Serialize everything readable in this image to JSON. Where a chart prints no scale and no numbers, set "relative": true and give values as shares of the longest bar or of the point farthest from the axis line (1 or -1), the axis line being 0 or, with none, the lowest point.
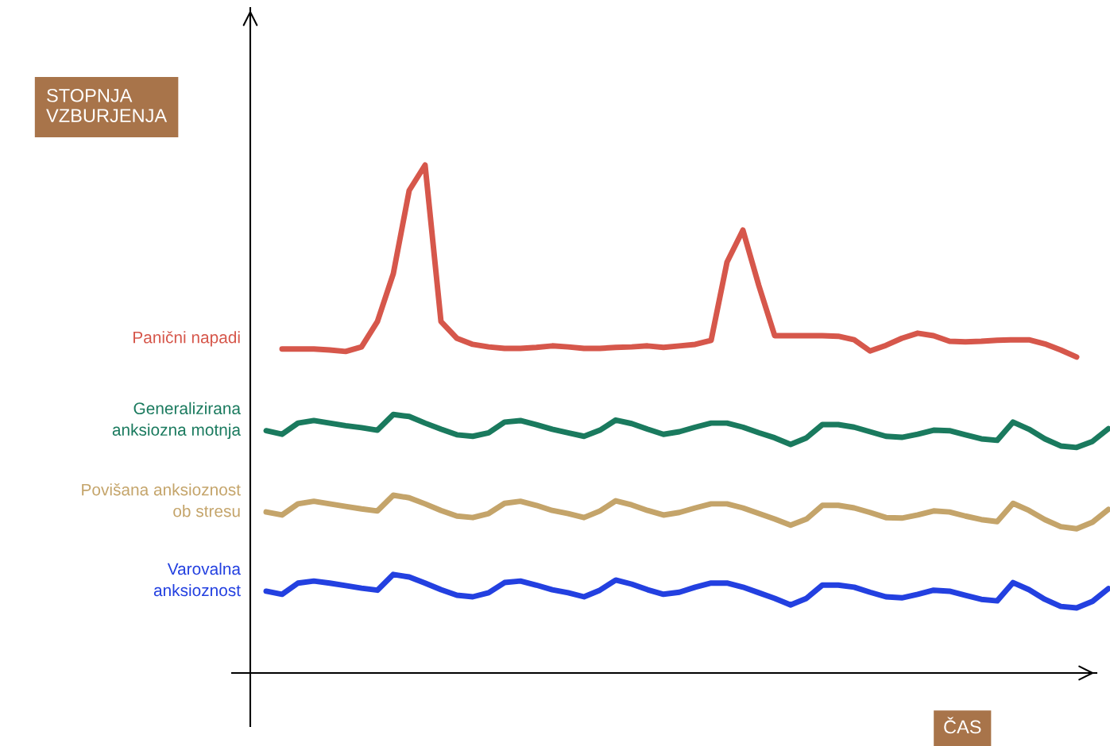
{
  "chart_data": {
    "type": "line",
    "relative": true,
    "xlabel": "ČAS",
    "annotations": [
      "STOPNJA\nVZBURJENJA"
    ],
    "legend": false,
    "grid": false,
    "marker": "none",
    "line_style": "solid",
    "categories": [
      null,
      null,
      null,
      null,
      null,
      null,
      null,
      null,
      null,
      null,
      null,
      null,
      null,
      null,
      null,
      null,
      null,
      null,
      null,
      null,
      null,
      null,
      null,
      null,
      null,
      null,
      null,
      null,
      null,
      null,
      null,
      null,
      null,
      null,
      null,
      null,
      null,
      null,
      null,
      null,
      null,
      null,
      null,
      null,
      null,
      null,
      null,
      null,
      null,
      null,
      null,
      null,
      null,
      null
    ],
    "series": [
      {
        "name": "Panični napadi",
        "color": "#d6574b",
        "values": [
          null,
          0.638,
          0.638,
          0.638,
          0.636,
          0.633,
          0.642,
          0.692,
          0.786,
          0.95,
          1,
          0.692,
          0.659,
          0.647,
          0.642,
          0.639,
          0.639,
          0.641,
          0.644,
          0.642,
          0.639,
          0.639,
          0.641,
          0.642,
          0.644,
          0.641,
          0.644,
          0.647,
          0.655,
          0.809,
          0.872,
          0.763,
          0.664,
          0.664,
          0.664,
          0.664,
          0.663,
          0.656,
          0.634,
          0.645,
          0.659,
          0.669,
          0.664,
          0.653,
          0.652,
          0.653,
          0.655,
          0.656,
          0.656,
          0.648,
          0.636,
          0.622,
          null,
          null
        ]
      },
      {
        "name": "Generalizirana\nanksiozna motnja",
        "color": "#1a7a5e",
        "values": [
          0.477,
          0.47,
          0.492,
          0.497,
          0.492,
          0.487,
          0.483,
          0.478,
          0.509,
          0.505,
          0.492,
          0.48,
          0.469,
          0.466,
          0.473,
          0.494,
          0.497,
          0.489,
          0.48,
          0.473,
          0.466,
          0.478,
          0.498,
          0.491,
          0.48,
          0.47,
          0.475,
          0.484,
          0.492,
          0.492,
          0.484,
          0.473,
          0.463,
          0.45,
          0.463,
          0.489,
          0.489,
          0.484,
          0.475,
          0.466,
          0.464,
          0.47,
          0.478,
          0.477,
          0.469,
          0.461,
          0.458,
          0.494,
          0.48,
          0.461,
          0.447,
          0.444,
          0.456,
          0.481
        ]
      },
      {
        "name": "Povišana anksioznost\nob stresu",
        "color": "#c4a46a",
        "values": [
          0.317,
          0.311,
          0.333,
          0.338,
          0.333,
          0.328,
          0.323,
          0.319,
          0.35,
          0.345,
          0.333,
          0.32,
          0.309,
          0.306,
          0.314,
          0.334,
          0.338,
          0.33,
          0.32,
          0.314,
          0.306,
          0.319,
          0.339,
          0.331,
          0.32,
          0.311,
          0.316,
          0.325,
          0.333,
          0.333,
          0.325,
          0.314,
          0.303,
          0.291,
          0.303,
          0.33,
          0.33,
          0.325,
          0.316,
          0.306,
          0.305,
          0.311,
          0.319,
          0.317,
          0.309,
          0.302,
          0.298,
          0.334,
          0.32,
          0.302,
          0.288,
          0.284,
          0.297,
          0.322
        ]
      },
      {
        "name": "Varovalna\nanksioznost",
        "color": "#2340e0",
        "values": [
          0.161,
          0.155,
          0.177,
          0.181,
          0.177,
          0.172,
          0.167,
          0.163,
          0.194,
          0.189,
          0.177,
          0.164,
          0.153,
          0.15,
          0.158,
          0.178,
          0.181,
          0.173,
          0.164,
          0.158,
          0.15,
          0.163,
          0.183,
          0.175,
          0.164,
          0.155,
          0.159,
          0.169,
          0.177,
          0.177,
          0.169,
          0.158,
          0.147,
          0.134,
          0.147,
          0.173,
          0.173,
          0.169,
          0.159,
          0.15,
          0.148,
          0.155,
          0.163,
          0.161,
          0.153,
          0.145,
          0.142,
          0.178,
          0.164,
          0.145,
          0.131,
          0.128,
          0.141,
          0.166
        ]
      }
    ]
  }
}
